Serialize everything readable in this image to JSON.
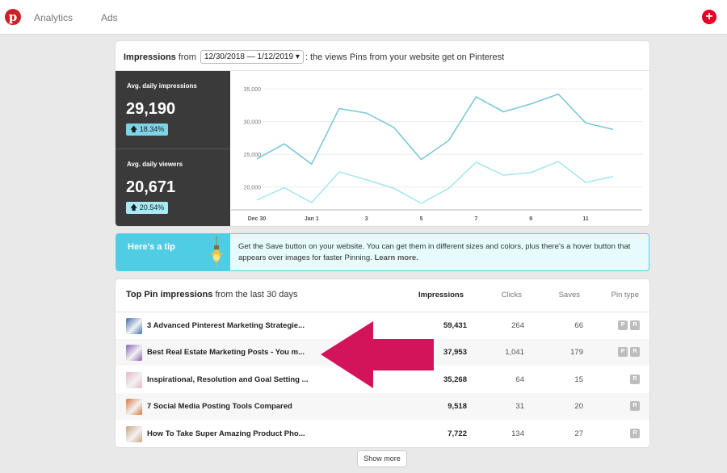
{
  "nav": {
    "logo_glyph": "p",
    "analytics_label": "Analytics",
    "ads_label": "Ads",
    "create_glyph": "+"
  },
  "impressions": {
    "title_bold": "Impressions",
    "from_text": "from",
    "date_range": "12/30/2018 — 1/12/2019",
    "dropdown_glyph": "▾",
    "suffix": ": the views Pins from your website get on Pinterest",
    "stats": [
      {
        "label": "Avg. daily impressions",
        "value": "29,190",
        "change": "18.34%",
        "color": "#7fd3e6"
      },
      {
        "label": "Avg. daily viewers",
        "value": "20,671",
        "change": "20.54%",
        "color": "#a9e9f4"
      }
    ]
  },
  "chart_data": {
    "type": "line",
    "x": [
      "Dec 30",
      "Dec 31",
      "Jan 1",
      "Jan 2",
      "Jan 3",
      "Jan 4",
      "Jan 5",
      "Jan 6",
      "Jan 7",
      "Jan 8",
      "Jan 9",
      "Jan 10",
      "Jan 11",
      "Jan 12"
    ],
    "x_tick_labels": [
      "Dec 30",
      "Jan 1",
      "3",
      "5",
      "7",
      "9",
      "11"
    ],
    "y_tick_labels": [
      "35,000",
      "30,000",
      "25,000",
      "20,000"
    ],
    "y_ticks": [
      35000,
      30000,
      25000,
      20000
    ],
    "ylim": [
      16500,
      36500
    ],
    "series": [
      {
        "values": [
          24300,
          26600,
          23500,
          32000,
          31300,
          29100,
          24200,
          27100,
          33800,
          31500,
          32700,
          34200,
          29800,
          28800
        ],
        "color": "#7cc8d8"
      },
      {
        "values": [
          18000,
          19900,
          17600,
          22300,
          21100,
          19800,
          17500,
          19800,
          23800,
          21800,
          22200,
          23900,
          20700,
          21600
        ],
        "color": "#a9e6f1"
      }
    ]
  },
  "tip": {
    "title": "Here's a tip",
    "text": "Get the Save button on your website. You can get them in different sizes and colors, plus there's a hover button that appears over images for faster Pinning.",
    "link": "Learn more."
  },
  "top_pins": {
    "title_bold": "Top Pin impressions",
    "title_rest": "from the last 30 days",
    "columns": [
      "Impressions",
      "Clicks",
      "Saves",
      "Pin type"
    ],
    "rows": [
      {
        "title": "3 Advanced Pinterest Marketing Strategie...",
        "impressions": "59,431",
        "clicks": "264",
        "saves": "66",
        "types": [
          "P",
          "R"
        ],
        "thumb": "#3a6fb0"
      },
      {
        "title": "Best Real Estate Marketing Posts - You m...",
        "impressions": "37,953",
        "clicks": "1,041",
        "saves": "179",
        "types": [
          "P",
          "R"
        ],
        "thumb": "#8a5fb5"
      },
      {
        "title": "Inspirational, Resolution and Goal Setting ...",
        "impressions": "35,268",
        "clicks": "64",
        "saves": "15",
        "types": [
          "R"
        ],
        "thumb": "#e8b7c6"
      },
      {
        "title": "7 Social Media Posting Tools Compared",
        "impressions": "9,518",
        "clicks": "31",
        "saves": "20",
        "types": [
          "R"
        ],
        "thumb": "#d9763a"
      },
      {
        "title": "How To Take Super Amazing Product Pho...",
        "impressions": "7,722",
        "clicks": "134",
        "saves": "27",
        "types": [
          "R"
        ],
        "thumb": "#c9a37e"
      }
    ],
    "show_more": "Show more"
  },
  "colors": {
    "arrow": "#d4145a",
    "accent": "#e60023",
    "tip_blue": "#4fcde5"
  }
}
